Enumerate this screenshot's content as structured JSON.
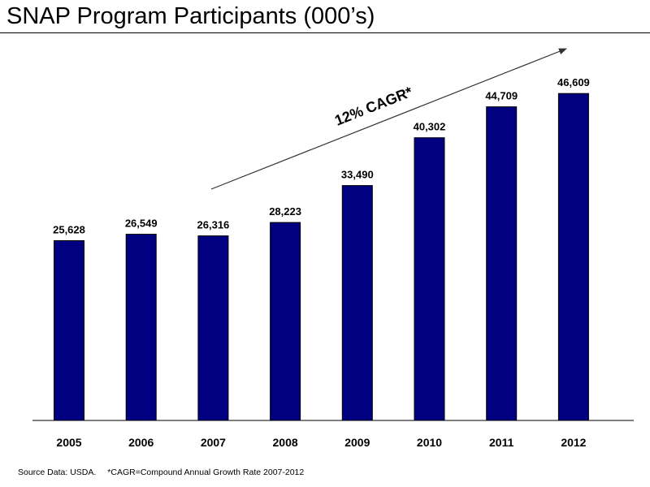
{
  "title": "SNAP Program Participants (000’s)",
  "annotation": "12% CAGR*",
  "source_text": "Source Data: USDA.",
  "footnote_text": "*CAGR=Compound Annual Growth Rate 2007-2012",
  "colors": {
    "bar": "#000080",
    "axis": "#000000"
  },
  "chart_data": {
    "type": "bar",
    "title": "SNAP Program Participants (000’s)",
    "categories": [
      "2005",
      "2006",
      "2007",
      "2008",
      "2009",
      "2010",
      "2011",
      "2012"
    ],
    "values": [
      25628,
      26549,
      26316,
      28223,
      33490,
      40302,
      44709,
      46609
    ],
    "value_labels": [
      "25,628",
      "26,549",
      "26,316",
      "28,223",
      "33,490",
      "40,302",
      "44,709",
      "46,609"
    ],
    "xlabel": "",
    "ylabel": "",
    "ylim": [
      0,
      53000
    ],
    "grid": false,
    "legend": "none"
  }
}
